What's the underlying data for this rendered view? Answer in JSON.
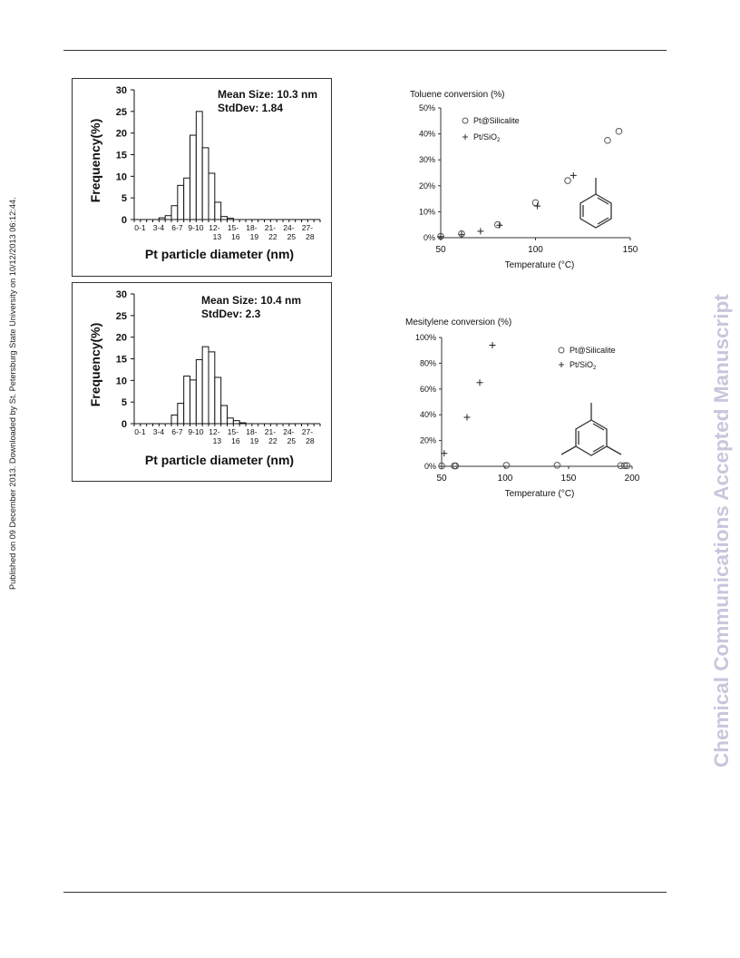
{
  "side_note_left": "Published on 09 December 2013. Downloaded by St. Petersburg State University on 10/12/2013 06:12:44.",
  "side_note_right": "Chemical Communications Accepted Manuscript",
  "colors": {
    "watermark": "#c8c6dc",
    "ink": "#111111",
    "marker": "#555555"
  },
  "chart_data": [
    {
      "type": "bar",
      "chart": "histogram-1",
      "annotation_mean": "Mean Size: 10.3 nm",
      "annotation_std": "StdDev: 1.84",
      "xlabel": "Pt particle diameter (nm)",
      "ylabel": "Frequency(%)",
      "ylim": [
        0,
        30
      ],
      "yticks": [
        "0",
        "5",
        "10",
        "15",
        "20",
        "25",
        "30"
      ],
      "xtick_labels": [
        {
          "line1": "0-1",
          "line2": ""
        },
        {
          "line1": "3-4",
          "line2": ""
        },
        {
          "line1": "6-7",
          "line2": ""
        },
        {
          "line1": "9-10",
          "line2": ""
        },
        {
          "line1": "12-",
          "line2": "13"
        },
        {
          "line1": "15-",
          "line2": "16"
        },
        {
          "line1": "18-",
          "line2": "19"
        },
        {
          "line1": "21-",
          "line2": "22"
        },
        {
          "line1": "24-",
          "line2": "25"
        },
        {
          "line1": "27-",
          "line2": "28"
        }
      ],
      "values": [
        0,
        0,
        0,
        0,
        0.4,
        0.9,
        3.2,
        7.9,
        9.6,
        19.5,
        25,
        16.6,
        10.7,
        4.0,
        0.7,
        0.3,
        0,
        0,
        0,
        0,
        0,
        0,
        0,
        0,
        0,
        0,
        0,
        0,
        0,
        0
      ]
    },
    {
      "type": "bar",
      "chart": "histogram-2",
      "annotation_mean": "Mean Size: 10.4 nm",
      "annotation_std": "StdDev: 2.3",
      "xlabel": "Pt particle diameter (nm)",
      "ylabel": "Frequency(%)",
      "ylim": [
        0,
        30
      ],
      "yticks": [
        "0",
        "5",
        "10",
        "15",
        "20",
        "25",
        "30"
      ],
      "xtick_labels": [
        {
          "line1": "0-1",
          "line2": ""
        },
        {
          "line1": "3-4",
          "line2": ""
        },
        {
          "line1": "6-7",
          "line2": ""
        },
        {
          "line1": "9-10",
          "line2": ""
        },
        {
          "line1": "12-",
          "line2": "13"
        },
        {
          "line1": "15-",
          "line2": "16"
        },
        {
          "line1": "18-",
          "line2": "19"
        },
        {
          "line1": "21-",
          "line2": "22"
        },
        {
          "line1": "24-",
          "line2": "25"
        },
        {
          "line1": "27-",
          "line2": "28"
        }
      ],
      "values": [
        0,
        0,
        0,
        0,
        0,
        0,
        2.0,
        4.7,
        11.0,
        10.1,
        14.8,
        17.8,
        16.6,
        10.7,
        4.2,
        1.3,
        0.7,
        0.2,
        0,
        0,
        0,
        0,
        0,
        0,
        0,
        0,
        0,
        0,
        0,
        0
      ]
    },
    {
      "type": "scatter",
      "chart": "toluene",
      "title": "Toluene conversion (%)",
      "xlabel": "Temperature (°C)",
      "xlim": [
        50,
        150
      ],
      "xticks": [
        50,
        100,
        150
      ],
      "ylim": [
        0,
        50
      ],
      "yticks": [
        0,
        10,
        20,
        30,
        40,
        50
      ],
      "ytick_labels": [
        "0%",
        "10%",
        "20%",
        "30%",
        "40%",
        "50%"
      ],
      "legend_position": "top-left",
      "series": [
        {
          "name": "Pt@Silicalite",
          "label": "Pt@Silicalite",
          "marker": "circle",
          "x": [
            50,
            61,
            80,
            100,
            117,
            138,
            144
          ],
          "y": [
            0.5,
            1.5,
            5,
            13.5,
            22,
            37.5,
            41
          ]
        },
        {
          "name": "Pt/SiO2",
          "label": "Pt/SiO",
          "sub": "2",
          "marker": "plus",
          "x": [
            50,
            61,
            71,
            81,
            101,
            120
          ],
          "y": [
            0.4,
            1.2,
            2.5,
            4.8,
            12.2,
            24
          ]
        }
      ],
      "molecule": "toluene"
    },
    {
      "type": "scatter",
      "chart": "mesitylene",
      "title": "Mesitylene conversion (%)",
      "xlabel": "Temperature (°C)",
      "xlim": [
        50,
        200
      ],
      "xticks": [
        50,
        100,
        150,
        200
      ],
      "ylim": [
        0,
        100
      ],
      "yticks": [
        0,
        20,
        40,
        60,
        80,
        100
      ],
      "ytick_labels": [
        "0%",
        "20%",
        "40%",
        "60%",
        "80%",
        "100%"
      ],
      "legend_position": "top-right",
      "series": [
        {
          "name": "Pt@Silicalite",
          "label": "Pt@Silicalite",
          "marker": "circle",
          "x": [
            50,
            60,
            61,
            101,
            141,
            191,
            194,
            196
          ],
          "y": [
            0.3,
            0.3,
            0.3,
            0.8,
            0.8,
            0.5,
            0.5,
            0.5
          ]
        },
        {
          "name": "Pt/SiO2",
          "label": "Pt/SiO",
          "sub": "2",
          "marker": "plus",
          "x": [
            52,
            70,
            80,
            90
          ],
          "y": [
            10,
            38,
            65,
            94
          ]
        }
      ],
      "molecule": "mesitylene"
    }
  ]
}
